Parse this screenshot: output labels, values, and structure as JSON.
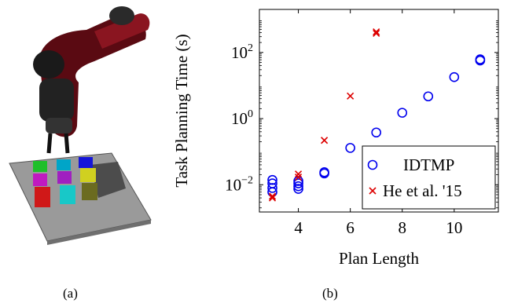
{
  "captions": {
    "a": "(a)",
    "b": "(b)"
  },
  "colors": {
    "idtmp": "#0000ee",
    "he": "#dd0000"
  },
  "chart_data": {
    "type": "scatter",
    "xlabel": "Plan Length",
    "ylabel": "Task Planning Time (s)",
    "xlim": [
      2.5,
      11.7
    ],
    "ylim": [
      0.0015,
      2000
    ],
    "yscale": "log",
    "xticks": [
      4,
      6,
      8,
      10
    ],
    "yticks": [
      {
        "value": 0.01,
        "base": "10",
        "exp": "−2"
      },
      {
        "value": 1,
        "base": "10",
        "exp": "0"
      },
      {
        "value": 100,
        "base": "10",
        "exp": "2"
      }
    ],
    "legend_position": "bottom-right",
    "series": [
      {
        "name": "IDTMP",
        "marker": "circle",
        "color": "#0000ee",
        "points": [
          [
            3,
            0.006
          ],
          [
            3,
            0.008
          ],
          [
            3,
            0.011
          ],
          [
            3,
            0.014
          ],
          [
            4,
            0.0075
          ],
          [
            4,
            0.009
          ],
          [
            4,
            0.011
          ],
          [
            4,
            0.013
          ],
          [
            5,
            0.022
          ],
          [
            5,
            0.024
          ],
          [
            6,
            0.13
          ],
          [
            7,
            0.38
          ],
          [
            8,
            1.5
          ],
          [
            9,
            4.7
          ],
          [
            10,
            18
          ],
          [
            11,
            57
          ],
          [
            11,
            62
          ]
        ]
      },
      {
        "name": "He et al. '15",
        "marker": "x",
        "color": "#dd0000",
        "points": [
          [
            3,
            0.004
          ],
          [
            3,
            0.0045
          ],
          [
            4,
            0.017
          ],
          [
            4,
            0.021
          ],
          [
            5,
            0.22
          ],
          [
            6,
            4.8
          ],
          [
            7,
            380
          ],
          [
            7,
            420
          ]
        ]
      }
    ]
  }
}
